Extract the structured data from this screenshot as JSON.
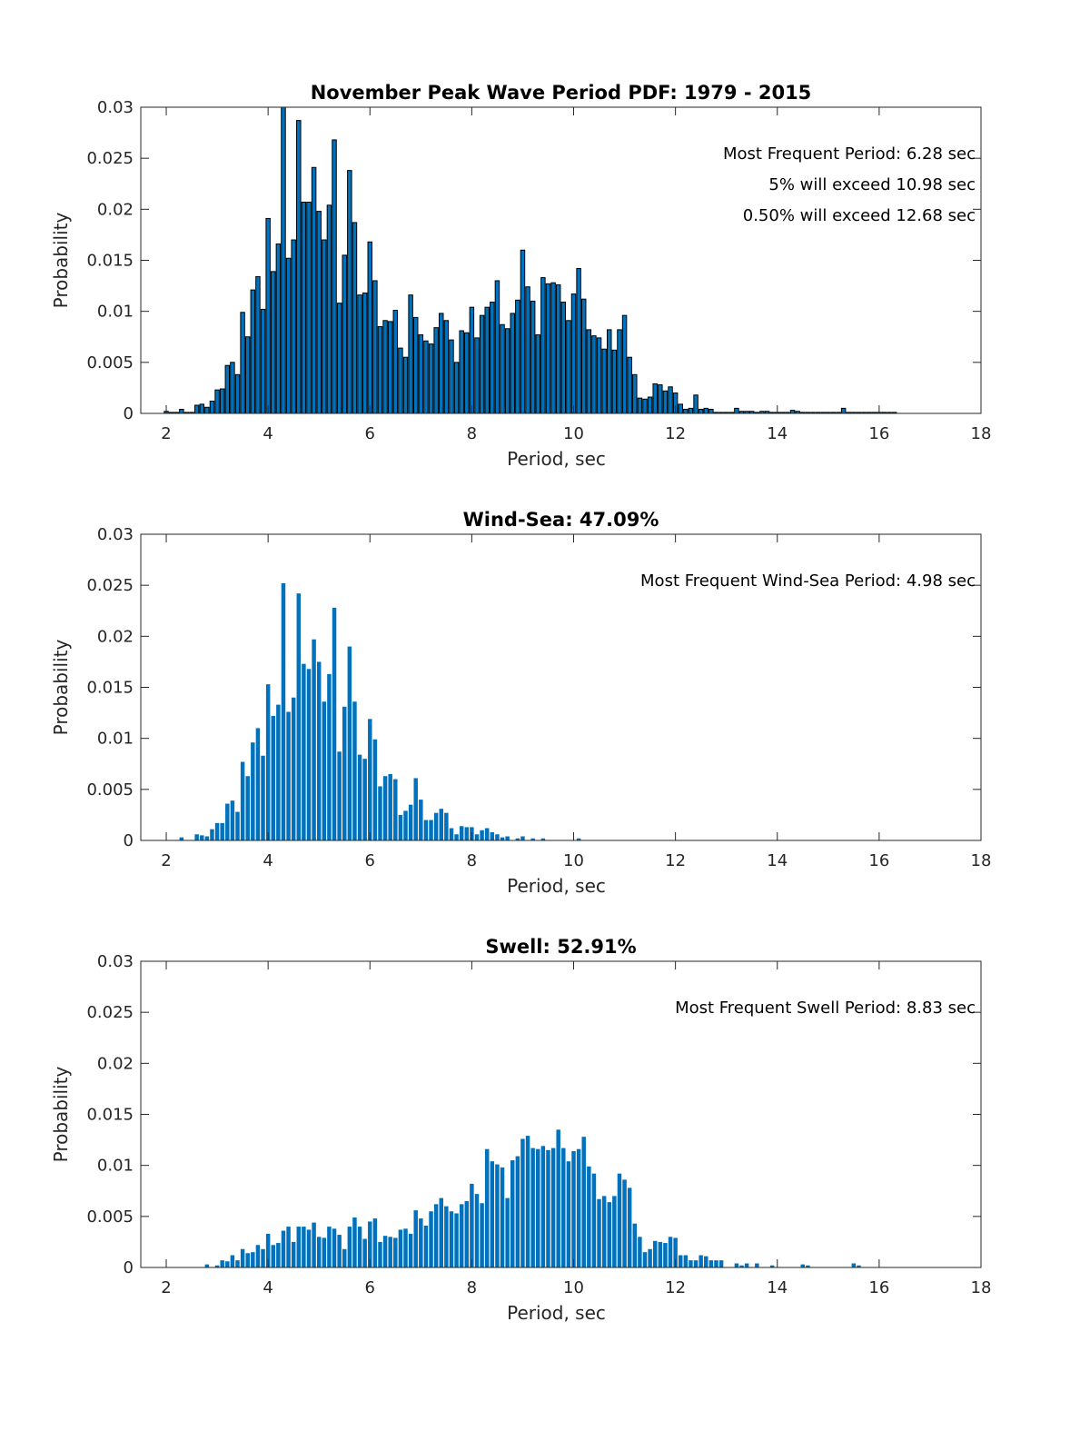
{
  "chart_data": [
    {
      "type": "bar",
      "title": "November Peak Wave Period PDF: 1979 - 2015",
      "xlabel": "Period, sec",
      "ylabel": "Probability",
      "xlim": [
        1.5,
        18
      ],
      "ylim": [
        0,
        0.03
      ],
      "xticks": [
        "2",
        "4",
        "6",
        "8",
        "10",
        "12",
        "14",
        "16",
        "18"
      ],
      "xtick_values": [
        2,
        4,
        6,
        8,
        10,
        12,
        14,
        16,
        18
      ],
      "yticks": [
        "0",
        "0.005",
        "0.01",
        "0.015",
        "0.02",
        "0.025",
        "0.03"
      ],
      "ytick_values": [
        0,
        0.005,
        0.01,
        0.015,
        0.02,
        0.025,
        0.03
      ],
      "bar_color": "#0072BD",
      "bar_edge": "#000000",
      "annotations": [
        "Most Frequent Period: 6.28 sec",
        "5% will exceed 10.98 sec",
        "0.50% will exceed 12.68 sec"
      ],
      "x_start": 2.0,
      "x_step": 0.1,
      "values": [
        0.0002,
        0.0001,
        0.0001,
        0.0004,
        0.0001,
        0.0001,
        0.0008,
        0.0009,
        0.0006,
        0.0012,
        0.0023,
        0.0024,
        0.0047,
        0.005,
        0.0038,
        0.0099,
        0.0075,
        0.0121,
        0.0134,
        0.0102,
        0.0191,
        0.0139,
        0.0166,
        0.03,
        0.0152,
        0.017,
        0.0287,
        0.0207,
        0.0207,
        0.0241,
        0.0198,
        0.017,
        0.0204,
        0.0268,
        0.0108,
        0.0155,
        0.0238,
        0.0187,
        0.0116,
        0.0118,
        0.0168,
        0.013,
        0.0085,
        0.0091,
        0.009,
        0.0101,
        0.0064,
        0.0055,
        0.0116,
        0.0094,
        0.0077,
        0.0071,
        0.0068,
        0.0084,
        0.0098,
        0.0091,
        0.0072,
        0.005,
        0.0081,
        0.0079,
        0.0104,
        0.0074,
        0.0096,
        0.0104,
        0.0109,
        0.013,
        0.0087,
        0.0083,
        0.0098,
        0.0111,
        0.016,
        0.0124,
        0.011,
        0.0077,
        0.0133,
        0.0127,
        0.0128,
        0.0126,
        0.0109,
        0.0091,
        0.0117,
        0.0142,
        0.0112,
        0.0082,
        0.0076,
        0.0074,
        0.0063,
        0.0082,
        0.0062,
        0.0082,
        0.0096,
        0.0055,
        0.0038,
        0.0015,
        0.0014,
        0.0016,
        0.0029,
        0.0028,
        0.0022,
        0.0026,
        0.002,
        0.0009,
        0.0004,
        0.0005,
        0.0018,
        0.0004,
        0.0005,
        0.0004,
        0.0001,
        0.0001,
        0.0001,
        0.0001,
        0.0005,
        0.0002,
        0.0002,
        0.0002,
        0.0001,
        0.0002,
        0.0002,
        0.0001,
        0.0001,
        0.0001,
        0.0001,
        0.0003,
        0.0002,
        0.0001,
        0.0001,
        0.0001,
        0.0001,
        0.0001,
        0.0001,
        0.0001,
        0.0001,
        0.0005,
        0.0001,
        0.0001,
        0.0001,
        0.0001,
        0.0001,
        0.0001,
        0.0001,
        0.0001,
        0.0001,
        0.0001
      ]
    },
    {
      "type": "bar",
      "title": "Wind-Sea: 47.09%",
      "xlabel": "Period, sec",
      "ylabel": "Probability",
      "xlim": [
        1.5,
        18
      ],
      "ylim": [
        0,
        0.03
      ],
      "xticks": [
        "2",
        "4",
        "6",
        "8",
        "10",
        "12",
        "14",
        "16",
        "18"
      ],
      "xtick_values": [
        2,
        4,
        6,
        8,
        10,
        12,
        14,
        16,
        18
      ],
      "yticks": [
        "0",
        "0.005",
        "0.01",
        "0.015",
        "0.02",
        "0.025",
        "0.03"
      ],
      "ytick_values": [
        0,
        0.005,
        0.01,
        0.015,
        0.02,
        0.025,
        0.03
      ],
      "bar_color": "#0072BD",
      "bar_edge": "none",
      "annotations": [
        "Most Frequent Wind-Sea Period: 4.98 sec"
      ],
      "x_start": 2.3,
      "x_step": 0.1,
      "values": [
        0.0003,
        0,
        0,
        0.0006,
        0.0005,
        0.0004,
        0.0011,
        0.0017,
        0.0017,
        0.0036,
        0.0039,
        0.0028,
        0.0077,
        0.0063,
        0.0096,
        0.011,
        0.0083,
        0.0153,
        0.0122,
        0.0133,
        0.0252,
        0.0126,
        0.014,
        0.0242,
        0.0173,
        0.0168,
        0.0197,
        0.0175,
        0.0136,
        0.0163,
        0.0228,
        0.0087,
        0.0131,
        0.019,
        0.0136,
        0.0084,
        0.008,
        0.0119,
        0.0099,
        0.0053,
        0.0063,
        0.0065,
        0.006,
        0.0025,
        0.0029,
        0.0035,
        0.0061,
        0.004,
        0.002,
        0.002,
        0.0027,
        0.0031,
        0.0027,
        0.0012,
        0.0006,
        0.0014,
        0.0013,
        0.0013,
        0.0006,
        0.001,
        0.0012,
        0.0008,
        0.0006,
        0.0003,
        0.0004,
        0,
        0.0002,
        0.0004,
        0,
        0.0002,
        0,
        0.0002,
        0,
        0,
        0,
        0,
        0,
        0,
        0.0002
      ]
    },
    {
      "type": "bar",
      "title": "Swell: 52.91%",
      "xlabel": "Period, sec",
      "ylabel": "Probability",
      "xlim": [
        1.5,
        18
      ],
      "ylim": [
        0,
        0.03
      ],
      "xticks": [
        "2",
        "4",
        "6",
        "8",
        "10",
        "12",
        "14",
        "16",
        "18"
      ],
      "xtick_values": [
        2,
        4,
        6,
        8,
        10,
        12,
        14,
        16,
        18
      ],
      "yticks": [
        "0",
        "0.005",
        "0.01",
        "0.015",
        "0.02",
        "0.025",
        "0.03"
      ],
      "ytick_values": [
        0,
        0.005,
        0.01,
        0.015,
        0.02,
        0.025,
        0.03
      ],
      "bar_color": "#0072BD",
      "bar_edge": "none",
      "annotations": [
        "Most Frequent Swell Period: 8.83 sec"
      ],
      "x_start": 2.8,
      "x_step": 0.1,
      "values": [
        0.0003,
        0,
        0.0002,
        0.0007,
        0.0006,
        0.0012,
        0.0007,
        0.0018,
        0.0014,
        0.0015,
        0.0022,
        0.0018,
        0.0033,
        0.0022,
        0.0024,
        0.0036,
        0.004,
        0.0025,
        0.004,
        0.004,
        0.0037,
        0.0044,
        0.003,
        0.0029,
        0.004,
        0.0038,
        0.0032,
        0.0018,
        0.004,
        0.0049,
        0.004,
        0.0028,
        0.0045,
        0.0048,
        0.0025,
        0.0031,
        0.003,
        0.0029,
        0.0037,
        0.0038,
        0.0033,
        0.0056,
        0.0048,
        0.0041,
        0.0055,
        0.0062,
        0.0068,
        0.006,
        0.0055,
        0.0053,
        0.0062,
        0.0065,
        0.0082,
        0.0072,
        0.0063,
        0.0116,
        0.0104,
        0.0101,
        0.0098,
        0.0068,
        0.0105,
        0.0109,
        0.0126,
        0.0129,
        0.0117,
        0.0116,
        0.0119,
        0.0115,
        0.0117,
        0.0135,
        0.0117,
        0.0104,
        0.0114,
        0.0116,
        0.0128,
        0.0099,
        0.0092,
        0.0067,
        0.007,
        0.0064,
        0.007,
        0.0092,
        0.0086,
        0.0078,
        0.0043,
        0.003,
        0.0015,
        0.0018,
        0.0026,
        0.0025,
        0.0024,
        0.003,
        0.0029,
        0.0012,
        0.0012,
        0.0007,
        0.0007,
        0.0012,
        0.0011,
        0.0007,
        0.0007,
        0.0007,
        0,
        0,
        0.0004,
        0.0002,
        0.0004,
        0,
        0.0004,
        0,
        0,
        0.0002,
        0,
        0,
        0,
        0,
        0,
        0.0003,
        0.0002,
        0,
        0,
        0,
        0,
        0,
        0,
        0,
        0,
        0.0004,
        0.0002
      ]
    }
  ]
}
